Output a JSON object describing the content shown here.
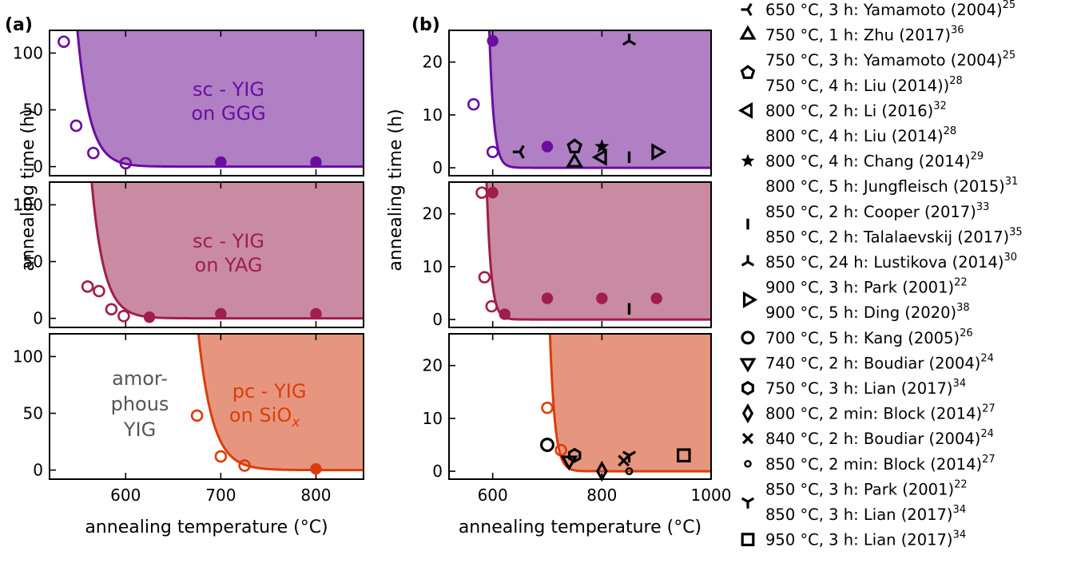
{
  "figure": {
    "panel_a_label": "(a)",
    "panel_b_label": "(b)",
    "xlabel": "annealing temperature (°C)",
    "ylabel": "annealing time (h)"
  },
  "colors": {
    "ggg_line": "#6a0ea0",
    "ggg_fill": "#b07fc4",
    "yag_line": "#a01e4c",
    "yag_fill": "#c98ba1",
    "sio_line": "#dc3c0a",
    "sio_fill": "#e6967e",
    "amorphous_text": "#555555"
  },
  "chart_data": [
    {
      "id": "a-ggg",
      "type": "scatter",
      "panel": "(a)",
      "xlim": [
        520,
        850
      ],
      "ylim": [
        -8,
        120
      ],
      "xticks": [
        600,
        700,
        800
      ],
      "yticks": [
        0,
        50,
        100
      ],
      "annotation": [
        "sc - YIG",
        "on GGG"
      ],
      "threshold_fit": {
        "x0": 535,
        "scale": 13
      },
      "series": [
        {
          "marker": "open-circle",
          "x": [
            535,
            548,
            566,
            600
          ],
          "y": [
            110,
            36,
            12,
            3
          ]
        },
        {
          "marker": "filled-circle",
          "x": [
            700,
            800
          ],
          "y": [
            4,
            4
          ]
        }
      ]
    },
    {
      "id": "a-yag",
      "type": "scatter",
      "panel": "(a)",
      "xlim": [
        520,
        850
      ],
      "ylim": [
        -8,
        120
      ],
      "xticks": [
        600,
        700,
        800
      ],
      "yticks": [
        0,
        50,
        100
      ],
      "annotation": [
        "sc - YIG",
        "on YAG"
      ],
      "threshold_fit": {
        "x0": 550,
        "scale": 13
      },
      "series": [
        {
          "marker": "open-circle",
          "x": [
            560,
            572,
            585,
            598
          ],
          "y": [
            28,
            24,
            8,
            2
          ]
        },
        {
          "marker": "filled-circle",
          "x": [
            625,
            700,
            800
          ],
          "y": [
            1,
            4,
            4
          ]
        }
      ]
    },
    {
      "id": "a-sio",
      "type": "scatter",
      "panel": "(a)",
      "xlim": [
        520,
        850
      ],
      "ylim": [
        -8,
        120
      ],
      "xticks": [
        600,
        700,
        800
      ],
      "yticks": [
        0,
        50,
        100
      ],
      "xlabel": "annealing temperature (°C)",
      "annotation": [
        "pc - YIG",
        "on SiO",
        "x"
      ],
      "annotation_amorphous": [
        "amor-",
        "phous",
        "YIG"
      ],
      "threshold_fit": {
        "x0": 660,
        "scale": 15
      },
      "series": [
        {
          "marker": "open-circle",
          "x": [
            675,
            700,
            725
          ],
          "y": [
            48,
            12,
            4
          ]
        },
        {
          "marker": "filled-circle",
          "x": [
            800
          ],
          "y": [
            1
          ]
        }
      ]
    },
    {
      "id": "b-ggg",
      "type": "scatter",
      "panel": "(b)",
      "xlim": [
        520,
        1000
      ],
      "ylim": [
        -1.5,
        26
      ],
      "xticks": [
        600,
        800,
        1000
      ],
      "yticks": [
        0,
        10,
        20
      ],
      "threshold_fit": {
        "x0": 585,
        "scale": 8
      },
      "series": [
        {
          "marker": "open-circle",
          "x": [
            565,
            600
          ],
          "y": [
            12,
            3
          ]
        },
        {
          "marker": "filled-circle",
          "x": [
            600,
            700
          ],
          "y": [
            24,
            4
          ]
        }
      ],
      "literature_points": [
        {
          "marker": "tri-left",
          "x": 650,
          "y": 3
        },
        {
          "marker": "triangle-up",
          "x": 750,
          "y": 1
        },
        {
          "marker": "pentagon",
          "x": 750,
          "y": 4
        },
        {
          "marker": "triangle-left",
          "x": 800,
          "y": 2
        },
        {
          "marker": "star",
          "x": 800,
          "y": 4
        },
        {
          "marker": "vline",
          "x": 850,
          "y": 2
        },
        {
          "marker": "tri-up",
          "x": 850,
          "y": 24
        },
        {
          "marker": "triangle-right",
          "x": 900,
          "y": 3
        }
      ]
    },
    {
      "id": "b-yag",
      "type": "scatter",
      "panel": "(b)",
      "xlim": [
        520,
        1000
      ],
      "ylim": [
        -1.5,
        26
      ],
      "xticks": [
        600,
        800,
        1000
      ],
      "yticks": [
        0,
        10,
        20
      ],
      "threshold_fit": {
        "x0": 580,
        "scale": 8
      },
      "series": [
        {
          "marker": "open-circle",
          "x": [
            580,
            585,
            598
          ],
          "y": [
            24,
            8,
            2.5
          ]
        },
        {
          "marker": "filled-circle",
          "x": [
            600,
            622,
            700,
            800,
            900
          ],
          "y": [
            24,
            1,
            4,
            4,
            4
          ]
        }
      ],
      "literature_points": [
        {
          "marker": "vline",
          "x": 850,
          "y": 2
        }
      ]
    },
    {
      "id": "b-sio",
      "type": "scatter",
      "panel": "(b)",
      "xlim": [
        520,
        1000
      ],
      "ylim": [
        -1.5,
        26
      ],
      "xticks": [
        600,
        800,
        1000
      ],
      "yticks": [
        0,
        10,
        20
      ],
      "xlabel": "annealing temperature (°C)",
      "threshold_fit": {
        "x0": 695,
        "scale": 9
      },
      "series": [
        {
          "marker": "open-circle",
          "x": [
            700,
            725
          ],
          "y": [
            12,
            4
          ]
        }
      ],
      "literature_points": [
        {
          "marker": "circle",
          "x": 700,
          "y": 5
        },
        {
          "marker": "triangle-down",
          "x": 740,
          "y": 2
        },
        {
          "marker": "hexagon",
          "x": 750,
          "y": 3
        },
        {
          "marker": "diamond",
          "x": 800,
          "y": 0
        },
        {
          "marker": "x",
          "x": 840,
          "y": 2
        },
        {
          "marker": "dot",
          "x": 850,
          "y": 0
        },
        {
          "marker": "tri-down",
          "x": 850,
          "y": 3
        },
        {
          "marker": "square",
          "x": 950,
          "y": 3
        }
      ]
    }
  ],
  "legend": [
    {
      "marker": "tri-left",
      "lines": [
        [
          "650 °C, 3 h: Yamamoto (2004)",
          "25"
        ]
      ]
    },
    {
      "marker": "triangle-up",
      "lines": [
        [
          "750 °C, 1 h: Zhu (2017)",
          "36"
        ]
      ]
    },
    {
      "marker": "pentagon",
      "lines": [
        [
          "750 °C, 3 h: Yamamoto (2004)",
          "25"
        ],
        [
          "750 °C, 4 h: Liu (2014))",
          "28"
        ]
      ]
    },
    {
      "marker": "triangle-left",
      "lines": [
        [
          "800 °C, 2 h: Li (2016)",
          "32"
        ]
      ]
    },
    {
      "marker": "star",
      "lines": [
        [
          "800 °C, 4 h: Liu (2014)",
          "28"
        ],
        [
          "800 °C, 4 h: Chang (2014)",
          "29"
        ],
        [
          "800 °C, 5 h: Jungfleisch (2015)",
          "31"
        ]
      ]
    },
    {
      "marker": "vline",
      "lines": [
        [
          "850 °C, 2 h: Cooper (2017)",
          "33"
        ],
        [
          "850 °C, 2 h: Talalaevskij (2017)",
          "35"
        ]
      ]
    },
    {
      "marker": "tri-up",
      "lines": [
        [
          "850 °C, 24 h: Lustikova (2014)",
          "30"
        ]
      ]
    },
    {
      "marker": "triangle-right",
      "lines": [
        [
          "900 °C, 3 h: Park (2001)",
          "22"
        ],
        [
          "900 °C, 5 h: Ding (2020)",
          "38"
        ]
      ]
    },
    {
      "marker": "circle",
      "lines": [
        [
          "700 °C, 5 h: Kang (2005)",
          "26"
        ]
      ]
    },
    {
      "marker": "triangle-down",
      "lines": [
        [
          "740 °C, 2 h: Boudiar (2004)",
          "24"
        ]
      ]
    },
    {
      "marker": "hexagon",
      "lines": [
        [
          "750 °C, 3 h: Lian (2017)",
          "34"
        ]
      ]
    },
    {
      "marker": "diamond",
      "lines": [
        [
          "800 °C, 2 min: Block (2014)",
          "27"
        ]
      ]
    },
    {
      "marker": "x",
      "lines": [
        [
          "840 °C, 2 h: Boudiar (2004)",
          "24"
        ]
      ]
    },
    {
      "marker": "dot",
      "lines": [
        [
          "850 °C, 2 min: Block (2014)",
          "27"
        ]
      ]
    },
    {
      "marker": "tri-down",
      "lines": [
        [
          "850 °C, 3 h: Park (2001)",
          "22"
        ],
        [
          "850 °C, 3 h: Lian (2017)",
          "34"
        ]
      ]
    },
    {
      "marker": "square",
      "lines": [
        [
          "950 °C, 3 h: Lian (2017)",
          "34"
        ]
      ]
    }
  ]
}
